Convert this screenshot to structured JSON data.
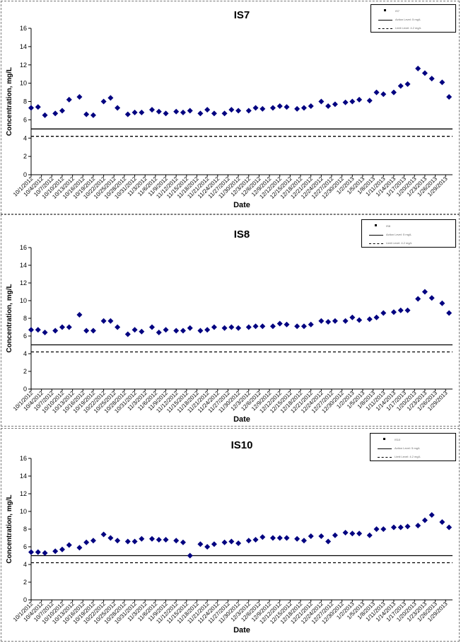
{
  "chart_data": [
    {
      "type": "scatter",
      "title": "IS7",
      "xlabel": "Date",
      "ylabel": "Concentration, mg/L",
      "ylim": [
        0,
        16
      ],
      "yticks": [
        0,
        2,
        4,
        6,
        8,
        10,
        12,
        14,
        16
      ],
      "xlim": [
        "10/1/2012",
        "1/31/2013"
      ],
      "xtick_labels": [
        "10/1/2012",
        "10/4/2012",
        "10/7/2012",
        "10/10/2012",
        "10/13/2012",
        "10/16/2012",
        "10/19/2012",
        "10/22/2012",
        "10/25/2012",
        "10/28/2012",
        "10/31/2012",
        "11/3/2012",
        "11/6/2012",
        "11/9/2012",
        "11/12/2012",
        "11/15/2012",
        "11/18/2012",
        "11/21/2012",
        "11/24/2012",
        "11/27/2012",
        "11/30/2012",
        "12/3/2012",
        "12/6/2012",
        "12/9/2012",
        "12/12/2012",
        "12/15/2012",
        "12/18/2012",
        "12/21/2012",
        "12/24/2012",
        "12/27/2012",
        "12/30/2012",
        "1/2/2013",
        "1/5/2013",
        "1/8/2013",
        "1/11/2013",
        "1/14/2013",
        "1/17/2013",
        "1/20/2013",
        "1/23/2013",
        "1/26/2013",
        "1/29/2013"
      ],
      "grid": false,
      "legend": {
        "position": "top-right",
        "entries": [
          "IS7",
          "Action Level: 5 mg/L",
          "Limit Level: 4.2 mg/L"
        ]
      },
      "reference_lines": [
        {
          "y": 5,
          "style": "solid"
        },
        {
          "y": 4.2,
          "style": "dashed"
        }
      ],
      "series": [
        {
          "name": "IS7",
          "color": "#000080",
          "x": [
            "10/1/2012",
            "10/3/2012",
            "10/5/2012",
            "10/8/2012",
            "10/10/2012",
            "10/12/2012",
            "10/15/2012",
            "10/17/2012",
            "10/19/2012",
            "10/22/2012",
            "10/24/2012",
            "10/26/2012",
            "10/29/2012",
            "10/31/2012",
            "11/2/2012",
            "11/5/2012",
            "11/7/2012",
            "11/9/2012",
            "11/12/2012",
            "11/14/2012",
            "11/16/2012",
            "11/19/2012",
            "11/21/2012",
            "11/23/2012",
            "11/26/2012",
            "11/28/2012",
            "11/30/2012",
            "12/3/2012",
            "12/5/2012",
            "12/7/2012",
            "12/10/2012",
            "12/12/2012",
            "12/14/2012",
            "12/17/2012",
            "12/19/2012",
            "12/21/2012",
            "12/24/2012",
            "12/26/2012",
            "12/28/2012",
            "12/31/2012",
            "1/2/2013",
            "1/4/2013",
            "1/7/2013",
            "1/9/2013",
            "1/11/2013",
            "1/14/2013",
            "1/16/2013",
            "1/18/2013",
            "1/21/2013",
            "1/23/2013",
            "1/25/2013",
            "1/28/2013",
            "1/30/2013"
          ],
          "values": [
            7.3,
            7.4,
            6.5,
            6.7,
            7.0,
            8.2,
            8.5,
            6.6,
            6.5,
            8.0,
            8.4,
            7.3,
            6.6,
            6.8,
            6.8,
            7.1,
            6.9,
            6.7,
            6.9,
            6.8,
            7.0,
            6.7,
            7.1,
            6.7,
            6.7,
            7.1,
            7.0,
            7.0,
            7.3,
            7.2,
            7.3,
            7.5,
            7.4,
            7.2,
            7.3,
            7.5,
            8.0,
            7.5,
            7.7,
            7.9,
            8.0,
            8.2,
            8.1,
            9.0,
            8.8,
            9.0,
            9.7,
            9.9,
            11.6,
            11.1,
            10.5,
            10.1,
            8.5
          ]
        }
      ]
    },
    {
      "type": "scatter",
      "title": "IS8",
      "xlabel": "Date",
      "ylabel": "Concentration, mg/L",
      "ylim": [
        0,
        16
      ],
      "yticks": [
        0,
        2,
        4,
        6,
        8,
        10,
        12,
        14,
        16
      ],
      "xlim": [
        "10/1/2012",
        "1/31/2013"
      ],
      "xtick_labels": [
        "10/1/2012",
        "10/4/2012",
        "10/7/2012",
        "10/10/2012",
        "10/13/2012",
        "10/16/2012",
        "10/19/2012",
        "10/22/2012",
        "10/25/2012",
        "10/28/2012",
        "10/31/2012",
        "11/3/2012",
        "11/6/2012",
        "11/9/2012",
        "11/12/2012",
        "11/15/2012",
        "11/18/2012",
        "11/21/2012",
        "11/24/2012",
        "11/27/2012",
        "11/30/2012",
        "12/3/2012",
        "12/6/2012",
        "12/9/2012",
        "12/12/2012",
        "12/15/2012",
        "12/18/2012",
        "12/21/2012",
        "12/24/2012",
        "12/27/2012",
        "12/30/2012",
        "1/2/2013",
        "1/5/2013",
        "1/8/2013",
        "1/11/2013",
        "1/14/2013",
        "1/17/2013",
        "1/20/2013",
        "1/23/2013",
        "1/26/2013",
        "1/29/2013"
      ],
      "grid": false,
      "legend": {
        "position": "top-right",
        "entries": [
          "IS8",
          "Action Level: 5 mg/L",
          "Limit Level: 4.2 mg/L"
        ]
      },
      "reference_lines": [
        {
          "y": 5,
          "style": "solid"
        },
        {
          "y": 4.2,
          "style": "dashed"
        }
      ],
      "series": [
        {
          "name": "IS8",
          "color": "#000080",
          "x": [
            "10/1/2012",
            "10/3/2012",
            "10/5/2012",
            "10/8/2012",
            "10/10/2012",
            "10/12/2012",
            "10/15/2012",
            "10/17/2012",
            "10/19/2012",
            "10/22/2012",
            "10/24/2012",
            "10/26/2012",
            "10/29/2012",
            "10/31/2012",
            "11/2/2012",
            "11/5/2012",
            "11/7/2012",
            "11/9/2012",
            "11/12/2012",
            "11/14/2012",
            "11/16/2012",
            "11/19/2012",
            "11/21/2012",
            "11/23/2012",
            "11/26/2012",
            "11/28/2012",
            "11/30/2012",
            "12/3/2012",
            "12/5/2012",
            "12/7/2012",
            "12/10/2012",
            "12/12/2012",
            "12/14/2012",
            "12/17/2012",
            "12/19/2012",
            "12/21/2012",
            "12/24/2012",
            "12/26/2012",
            "12/28/2012",
            "12/31/2012",
            "1/2/2013",
            "1/4/2013",
            "1/7/2013",
            "1/9/2013",
            "1/11/2013",
            "1/14/2013",
            "1/16/2013",
            "1/18/2013",
            "1/21/2013",
            "1/23/2013",
            "1/25/2013",
            "1/28/2013",
            "1/30/2013"
          ],
          "values": [
            6.7,
            6.7,
            6.4,
            6.6,
            7.0,
            7.0,
            8.4,
            6.6,
            6.6,
            7.7,
            7.7,
            7.0,
            6.2,
            6.7,
            6.5,
            7.0,
            6.4,
            6.7,
            6.6,
            6.6,
            6.9,
            6.6,
            6.7,
            7.0,
            6.9,
            7.0,
            6.9,
            7.0,
            7.1,
            7.1,
            7.1,
            7.4,
            7.3,
            7.1,
            7.1,
            7.3,
            7.7,
            7.6,
            7.7,
            7.7,
            8.1,
            7.8,
            7.9,
            8.1,
            8.6,
            8.7,
            8.9,
            8.9,
            10.2,
            11.0,
            10.3,
            9.7,
            8.6
          ]
        }
      ]
    },
    {
      "type": "scatter",
      "title": "IS10",
      "xlabel": "Date",
      "ylabel": "Concentration, mg/L",
      "ylim": [
        0,
        16
      ],
      "yticks": [
        0,
        2,
        4,
        6,
        8,
        10,
        12,
        14,
        16
      ],
      "xlim": [
        "10/1/2012",
        "1/31/2013"
      ],
      "xtick_labels": [
        "10/1/2012",
        "10/4/2012",
        "10/7/2012",
        "10/10/2012",
        "10/13/2012",
        "10/16/2012",
        "10/19/2012",
        "10/22/2012",
        "10/25/2012",
        "10/28/2012",
        "10/31/2012",
        "11/3/2012",
        "11/6/2012",
        "11/9/2012",
        "11/12/2012",
        "11/15/2012",
        "11/18/2012",
        "11/21/2012",
        "11/24/2012",
        "11/27/2012",
        "11/30/2012",
        "12/3/2012",
        "12/6/2012",
        "12/9/2012",
        "12/12/2012",
        "12/15/2012",
        "12/18/2012",
        "12/21/2012",
        "12/24/2012",
        "12/27/2012",
        "12/30/2012",
        "1/2/2013",
        "1/5/2013",
        "1/8/2013",
        "1/11/2013",
        "1/14/2013",
        "1/17/2013",
        "1/20/2013",
        "1/23/2013",
        "1/26/2013",
        "1/29/2013"
      ],
      "grid": false,
      "legend": {
        "position": "top-right",
        "entries": [
          "IS10",
          "Action Level: 5 mg/L",
          "Limit Level: 4.2 mg/L"
        ]
      },
      "reference_lines": [
        {
          "y": 5,
          "style": "solid"
        },
        {
          "y": 4.2,
          "style": "dashed"
        }
      ],
      "series": [
        {
          "name": "IS10",
          "color": "#000080",
          "x": [
            "10/1/2012",
            "10/3/2012",
            "10/5/2012",
            "10/8/2012",
            "10/10/2012",
            "10/12/2012",
            "10/15/2012",
            "10/17/2012",
            "10/19/2012",
            "10/22/2012",
            "10/24/2012",
            "10/26/2012",
            "10/29/2012",
            "10/31/2012",
            "11/2/2012",
            "11/5/2012",
            "11/7/2012",
            "11/9/2012",
            "11/12/2012",
            "11/14/2012",
            "11/16/2012",
            "11/19/2012",
            "11/21/2012",
            "11/23/2012",
            "11/26/2012",
            "11/28/2012",
            "11/30/2012",
            "12/3/2012",
            "12/5/2012",
            "12/7/2012",
            "12/10/2012",
            "12/12/2012",
            "12/14/2012",
            "12/17/2012",
            "12/19/2012",
            "12/21/2012",
            "12/24/2012",
            "12/26/2012",
            "12/28/2012",
            "12/31/2012",
            "1/2/2013",
            "1/4/2013",
            "1/7/2013",
            "1/9/2013",
            "1/11/2013",
            "1/14/2013",
            "1/16/2013",
            "1/18/2013",
            "1/21/2013",
            "1/23/2013",
            "1/25/2013",
            "1/28/2013",
            "1/30/2013"
          ],
          "values": [
            5.4,
            5.4,
            5.3,
            5.5,
            5.7,
            6.2,
            5.9,
            6.5,
            6.7,
            7.4,
            7.0,
            6.7,
            6.6,
            6.6,
            6.9,
            6.9,
            6.8,
            6.8,
            6.7,
            6.5,
            5.0,
            6.3,
            6.0,
            6.3,
            6.5,
            6.6,
            6.4,
            6.7,
            6.8,
            7.1,
            7.0,
            7.0,
            7.0,
            6.9,
            6.7,
            7.2,
            7.2,
            6.6,
            7.3,
            7.6,
            7.5,
            7.5,
            7.3,
            8.0,
            8.0,
            8.2,
            8.2,
            8.3,
            8.4,
            9.0,
            9.6,
            8.8,
            8.2
          ]
        }
      ]
    }
  ]
}
